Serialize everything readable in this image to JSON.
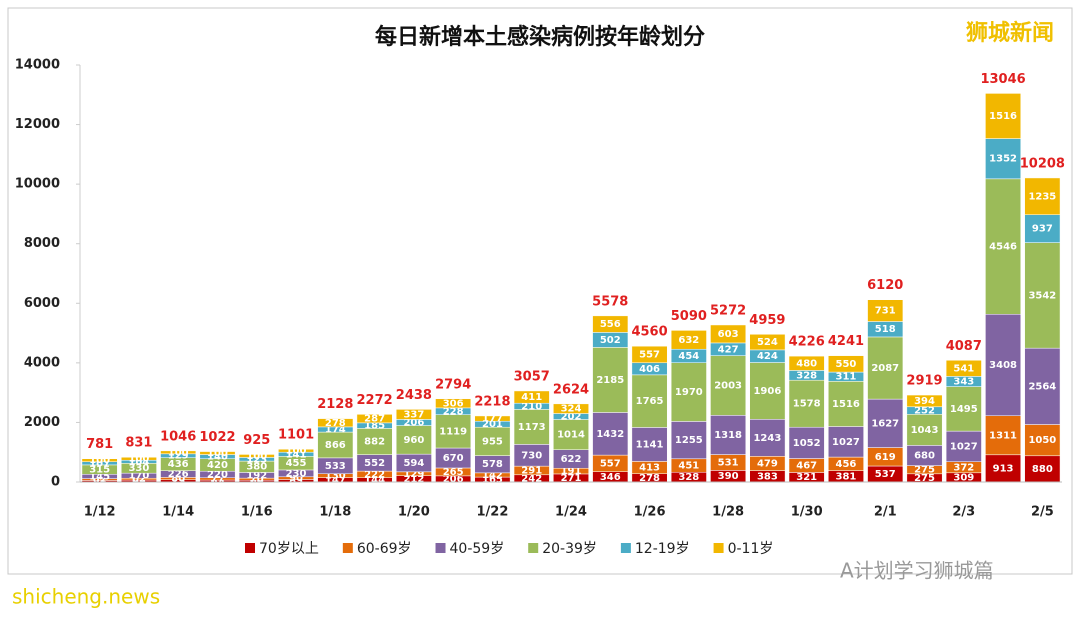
{
  "chart_data": {
    "type": "stacked_bar",
    "title": "每日新增本土感染病例按年龄划分",
    "categories": [
      "1/12",
      null,
      "1/14",
      null,
      "1/16",
      null,
      "1/18",
      null,
      "1/20",
      null,
      "1/22",
      null,
      "1/24",
      null,
      "1/26",
      null,
      "1/28",
      null,
      "1/30",
      null,
      "2/1",
      null,
      "2/3",
      null,
      "2/5"
    ],
    "series": [
      {
        "name": "70岁以上",
        "color": "#c00000",
        "values": [
          52,
          65,
          75,
          65,
          60,
          85,
          147,
          144,
          212,
          206,
          165,
          242,
          271,
          346,
          278,
          328,
          390,
          383,
          321,
          381,
          537,
          275,
          309,
          913,
          880
        ]
      },
      {
        "name": "60-69岁",
        "color": "#e46c0a",
        "values": [
          62,
          62,
          80,
          77,
          70,
          90,
          130,
          222,
          129,
          265,
          142,
          291,
          191,
          557,
          413,
          451,
          531,
          479,
          467,
          456,
          619,
          275,
          372,
          1311,
          1050
        ]
      },
      {
        "name": "40-59岁",
        "color": "#8064a2",
        "values": [
          145,
          170,
          226,
          220,
          192,
          230,
          533,
          552,
          594,
          670,
          578,
          730,
          622,
          1432,
          1141,
          1255,
          1318,
          1243,
          1052,
          1027,
          1627,
          680,
          1027,
          3408,
          2564
        ]
      },
      {
        "name": "20-39岁",
        "color": "#9bbb59",
        "values": [
          315,
          330,
          436,
          420,
          380,
          455,
          866,
          882,
          960,
          1119,
          955,
          1173,
          1014,
          2185,
          1765,
          1970,
          2003,
          1906,
          1578,
          1516,
          2087,
          1043,
          1495,
          4546,
          3542
        ]
      },
      {
        "name": "12-19岁",
        "color": "#4bacc6",
        "values": [
          107,
          104,
          129,
          140,
          123,
          141,
          174,
          185,
          206,
          228,
          201,
          210,
          202,
          502,
          406,
          454,
          427,
          424,
          328,
          311,
          518,
          252,
          343,
          1352,
          937
        ]
      },
      {
        "name": "0-11岁",
        "color": "#f2b700",
        "values": [
          100,
          100,
          100,
          100,
          100,
          100,
          278,
          287,
          337,
          306,
          177,
          411,
          324,
          556,
          557,
          632,
          603,
          524,
          480,
          550,
          731,
          394,
          541,
          1516,
          1235
        ]
      }
    ],
    "totals": [
      781,
      831,
      1046,
      1022,
      925,
      1101,
      2128,
      2272,
      2438,
      2794,
      2218,
      3057,
      2624,
      5578,
      4560,
      5090,
      5272,
      4959,
      4226,
      4241,
      6120,
      2919,
      4087,
      13046,
      10208
    ],
    "ylim": [
      0,
      14000
    ],
    "yticks": [
      0,
      2000,
      4000,
      6000,
      8000,
      10000,
      12000,
      14000
    ],
    "grid": false,
    "legend": "bottom",
    "watermarks": [
      "狮城新闻",
      "shicheng.news",
      "A计划学习狮城篇"
    ]
  }
}
